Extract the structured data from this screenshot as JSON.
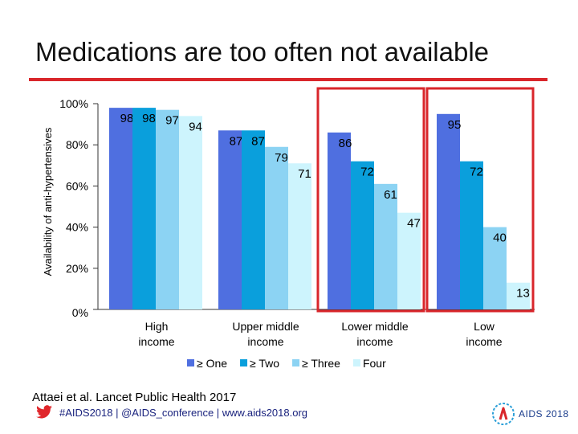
{
  "slide": {
    "title": "Medications are too often not available",
    "source": "Attaei et al. Lancet Public Health 2017",
    "footer": "#AIDS2018 | @AIDS_conference | www.aids2018.org",
    "logo_text": "AIDS 2018",
    "accent_color": "#d9262b"
  },
  "icons": {
    "footer": "twitter-bird-icon",
    "logo": "aids2018-ribbon-logo"
  },
  "chart_data": {
    "type": "bar",
    "ylabel": "Availability of anti-hypertensives",
    "ylim": [
      0,
      100
    ],
    "yticks": [
      "0%",
      "20%",
      "40%",
      "60%",
      "80%",
      "100%"
    ],
    "categories": [
      "High income",
      "Upper middle income",
      "Lower middle income",
      "Low income"
    ],
    "series": [
      {
        "name": "≥ One",
        "color": "#4f6fe0",
        "values": [
          98,
          87,
          86,
          95
        ]
      },
      {
        "name": "≥ Two",
        "color": "#0a9fdc",
        "values": [
          98,
          87,
          72,
          72
        ]
      },
      {
        "name": "≥ Three",
        "color": "#8cd3f3",
        "values": [
          97,
          79,
          61,
          40
        ]
      },
      {
        "name": "Four",
        "color": "#cdf4fd",
        "values": [
          94,
          71,
          47,
          13
        ]
      }
    ],
    "legend_position": "bottom",
    "grid": false,
    "highlighted_categories": [
      "Lower middle income",
      "Low income"
    ]
  }
}
